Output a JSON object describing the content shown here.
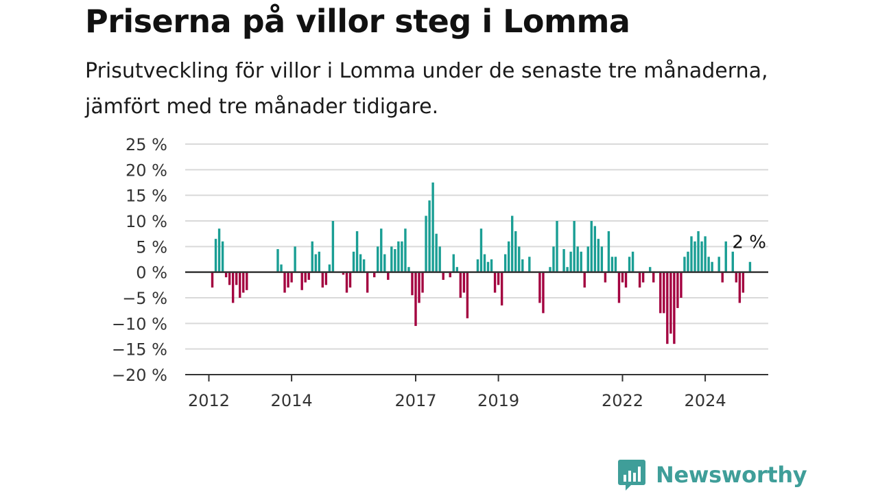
{
  "chart_data": {
    "type": "bar",
    "title": "Priserna på villor steg i Lomma",
    "subtitle": "Prisutveckling för villor i Lomma under de senaste tre månaderna, jämfört med tre månader tidigare.",
    "xlabel": "",
    "ylabel": "",
    "y_unit": "%",
    "ylim": [
      -20,
      25
    ],
    "y_ticks": [
      25,
      20,
      15,
      10,
      5,
      0,
      -5,
      -10,
      -15,
      -20
    ],
    "y_tick_labels": [
      "25 %",
      "20 %",
      "15 %",
      "10 %",
      "5 %",
      "0 %",
      "−5 %",
      "−10 %",
      "−15 %",
      "−20 %"
    ],
    "x_ticks": [
      2012,
      2014,
      2017,
      2019,
      2022,
      2024
    ],
    "x_tick_labels": [
      "2012",
      "2014",
      "2017",
      "2019",
      "2022",
      "2024"
    ],
    "x_start_month": "2012-01",
    "grid": true,
    "colors": {
      "positive": "#1a9e94",
      "negative": "#a3003f",
      "grid": "#d9d9d9",
      "axis": "#333333"
    },
    "last_value_label": "2 %",
    "series": [
      {
        "values": [
          null,
          -3,
          6.5,
          8.5,
          6,
          -1,
          -2.5,
          -6,
          -2.5,
          -5,
          -4,
          -3.5,
          null,
          null,
          null,
          null,
          null,
          null,
          null,
          null,
          4.5,
          1.5,
          -4,
          -3,
          -2,
          5,
          null,
          -3.5,
          -2,
          -1.5,
          6,
          3.5,
          4,
          -3,
          -2.5,
          1.5,
          10,
          null,
          null,
          -0.5,
          -4,
          -3,
          4,
          8,
          3.5,
          2.5,
          -4,
          null,
          -1,
          5,
          8.5,
          3.5,
          -1.5,
          5,
          4.5,
          6,
          6,
          8.5,
          1,
          -4.5,
          -10.5,
          -6,
          -4,
          11,
          14,
          17.5,
          7.5,
          5,
          -1.5,
          null,
          -1,
          3.5,
          1,
          -5,
          -4,
          -9,
          null,
          null,
          2.5,
          8.5,
          3.5,
          2,
          2.5,
          -4,
          -2.5,
          -6.5,
          3.5,
          6,
          11,
          8,
          5,
          2.5,
          null,
          3,
          null,
          null,
          -6,
          -8,
          null,
          1,
          5,
          10,
          null,
          4.5,
          1,
          4,
          10,
          5,
          4,
          -3,
          5,
          10,
          9,
          6.5,
          5,
          -2,
          8,
          3,
          3,
          -6,
          -2,
          -3,
          3,
          4,
          null,
          -3,
          -2,
          null,
          1,
          -2,
          null,
          -8,
          -8,
          -14,
          -12,
          -14,
          -7,
          -5,
          3,
          4,
          7,
          6,
          8,
          6,
          7,
          3,
          2,
          null,
          3,
          -2,
          6,
          null,
          4,
          -2,
          -6,
          -4,
          null,
          2
        ]
      }
    ]
  },
  "brand": {
    "name": "Newsworthy",
    "logo_icon": "bar-chart-speech-bubble-icon",
    "color": "#3f9e99"
  }
}
